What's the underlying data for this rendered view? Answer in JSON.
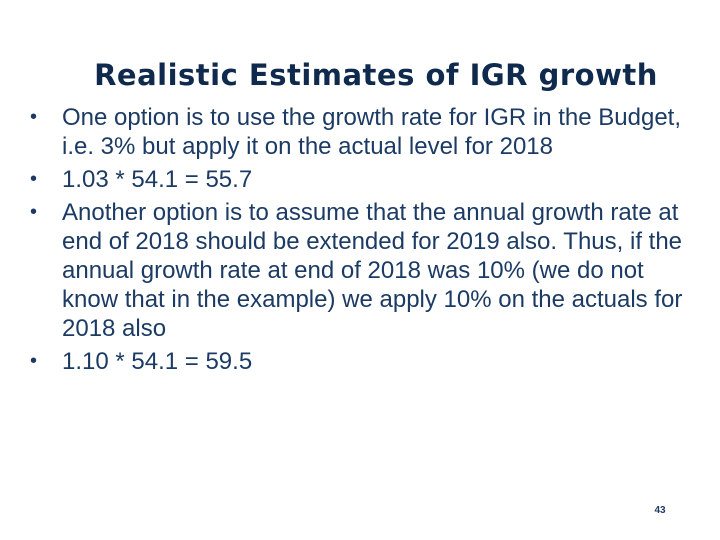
{
  "slide": {
    "title": "Realistic Estimates of IGR growth",
    "bullets": [
      "One option is to use the growth rate for IGR in the Budget, i.e. 3% but apply it on the actual level for 2018",
      "1.03 * 54.1 = 55.7",
      "Another option is to assume that the annual growth rate at end of 2018 should be extended for 2019 also. Thus, if the annual growth rate at end of 2018 was 10% (we do not know that in the example) we apply 10% on the actuals for 2018 also",
      "1.10 * 54.1 = 59.5"
    ],
    "bullet_symbol": "•",
    "page_number": "43"
  }
}
